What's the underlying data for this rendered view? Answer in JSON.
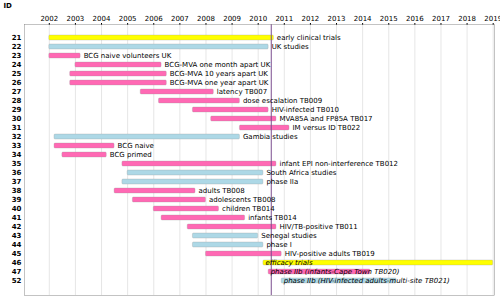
{
  "chart_data": {
    "type": "gantt",
    "orientation": "horizontal",
    "ylabel": "ID",
    "categories": [
      "21",
      "22",
      "23",
      "24",
      "25",
      "26",
      "27",
      "28",
      "29",
      "30",
      "31",
      "32",
      "33",
      "34",
      "35",
      "36",
      "37",
      "38",
      "39",
      "40",
      "41",
      "42",
      "43",
      "44",
      "45",
      "46",
      "47",
      "52"
    ],
    "labels": [
      "early clinical trials",
      "UK studies",
      "BCG naive volunteers UK",
      "BCG-MVA one month apart UK",
      "BCG-MVA 10 years apart UK",
      "BCG-MVA one year apart UK",
      "latency TB007",
      "dose escalation TB009",
      "HIV-infected TB010",
      "MVA85A and FP85A TB017",
      "IM versus ID TB022",
      "Gambia studies",
      "BCG naive",
      "BCG primed",
      "infant EPI non-interference TB012",
      "South Africa studies",
      "phase IIa",
      "adults TB008",
      "adolescents TB008",
      "children TB014",
      "infants TB014",
      "HIV/TB-positive TB011",
      "Senegal studies",
      "phase I",
      "HIV-positive adults TB019",
      "efficacy trials",
      "phase IIb (infants-Cape Town TB020)",
      "phase IIb (HIV-infected adults-multi-site TB021)"
    ],
    "start": [
      2002.0,
      2002.0,
      2002.0,
      2003.0,
      2002.8,
      2002.8,
      2005.5,
      2006.2,
      2007.5,
      2008.2,
      2009.3,
      2002.2,
      2002.2,
      2002.5,
      2004.8,
      2005.0,
      2004.8,
      2004.5,
      2005.2,
      2006.0,
      2006.3,
      2007.3,
      2007.5,
      2007.5,
      2008.0,
      2010.2,
      2010.4,
      2010.9
    ],
    "end": [
      2010.6,
      2010.4,
      2003.2,
      2006.3,
      2006.5,
      2006.5,
      2008.3,
      2009.3,
      2010.4,
      2010.7,
      2011.2,
      2009.3,
      2004.5,
      2004.2,
      2010.7,
      2010.2,
      2010.2,
      2007.6,
      2008.0,
      2008.5,
      2009.5,
      2010.7,
      2010.0,
      2010.2,
      2010.9,
      2019.0,
      2014.3,
      2015.3
    ],
    "colors": [
      "#ffff00",
      "#add8e6",
      "#ff69b4",
      "#ff69b4",
      "#ff69b4",
      "#ff69b4",
      "#ff69b4",
      "#ff69b4",
      "#ff69b4",
      "#ff69b4",
      "#ff69b4",
      "#add8e6",
      "#ff69b4",
      "#ff69b4",
      "#ff69b4",
      "#add8e6",
      "#add8e6",
      "#ff69b4",
      "#ff69b4",
      "#ff69b4",
      "#ff69b4",
      "#ff69b4",
      "#add8e6",
      "#add8e6",
      "#ff69b4",
      "#ffff00",
      "#ff69b4",
      "#add8e6"
    ],
    "xlim": [
      2001.05,
      2019.05
    ],
    "xticks": [
      2002,
      2003,
      2004,
      2005,
      2006,
      2007,
      2008,
      2009,
      2010,
      2011,
      2012,
      2013,
      2014,
      2015,
      2016,
      2017,
      2018,
      2019
    ],
    "vertical_line": 2010.5,
    "grid": true
  }
}
